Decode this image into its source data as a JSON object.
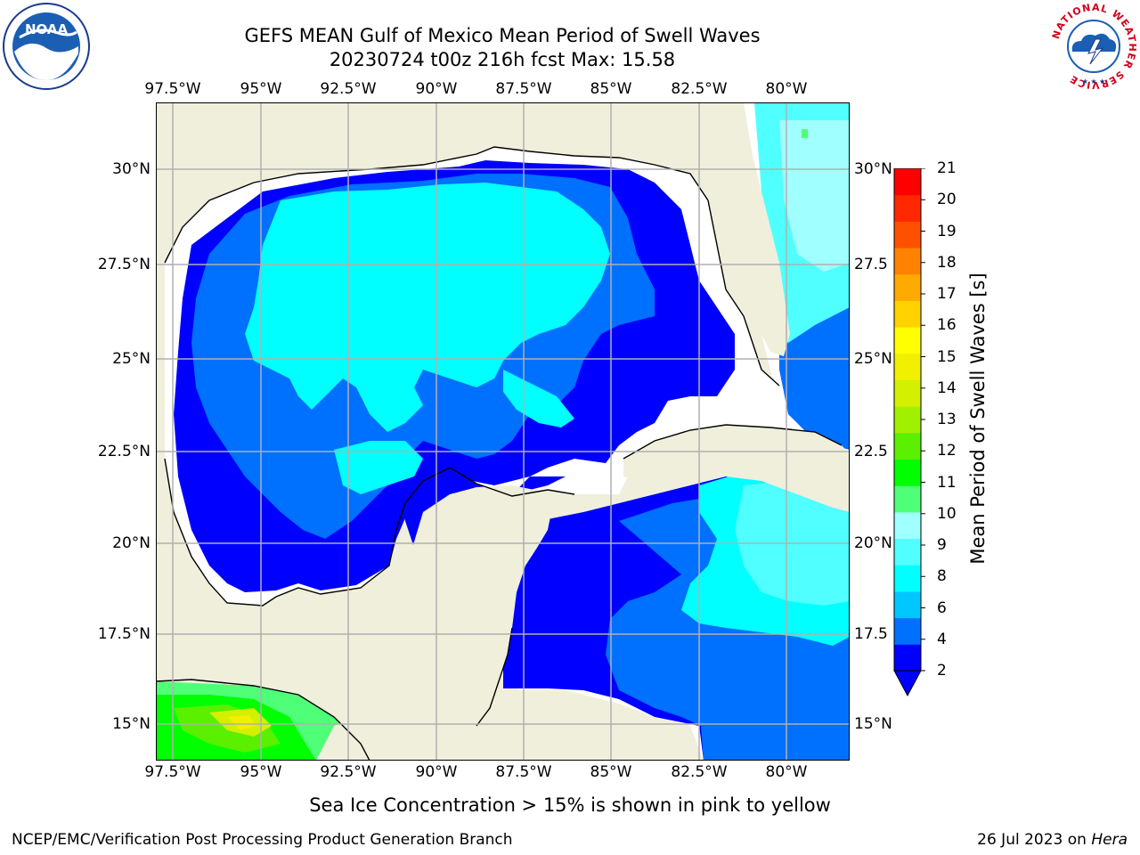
{
  "title": {
    "line1": "GEFS MEAN Gulf of Mexico Mean Period of Swell Waves",
    "line2": "20230724 t00z 216h fcst   Max: 15.58"
  },
  "axes": {
    "lon_ticks": [
      "97.5°W",
      "95°W",
      "92.5°W",
      "90°W",
      "87.5°W",
      "85°W",
      "82.5°W",
      "80°W"
    ],
    "lat_ticks_left": [
      "30°N",
      "27.5°N",
      "25°N",
      "22.5°N",
      "20°N",
      "17.5°N",
      "15°N"
    ],
    "lat_ticks_right": [
      "30°N",
      "27.5",
      "25°N",
      "22.5",
      "20°N",
      "17.5",
      "15°N"
    ]
  },
  "colorbar": {
    "label": "Mean Period of Swell Waves [s]",
    "ticks": [
      "2",
      "4",
      "6",
      "8",
      "9",
      "10",
      "11",
      "12",
      "13",
      "14",
      "15",
      "16",
      "17",
      "18",
      "19",
      "20",
      "21"
    ],
    "colors": [
      "#0000ff",
      "#0070ff",
      "#00c8ff",
      "#00ffff",
      "#50ffff",
      "#a0ffff",
      "#50ff78",
      "#00ff00",
      "#5af000",
      "#a0f000",
      "#d2f000",
      "#f0f000",
      "#ffff00",
      "#ffd200",
      "#ffaa00",
      "#ff8200",
      "#ff5000",
      "#ff2800",
      "#ff0000"
    ],
    "under_color": "#0000ff"
  },
  "map_colors": {
    "land": "#efefdc",
    "ocean_missing": "#ffffff",
    "period_2_4": "#0000ff",
    "period_4_6": "#0070ff",
    "period_6_8": "#00ffff",
    "period_8_9": "#50ffff",
    "period_9_10": "#a0ffff",
    "period_10_11": "#50ff78",
    "period_11_12": "#00ff00",
    "period_12_13": "#5af000",
    "period_13_14": "#d2f000",
    "period_14_15": "#f0f000"
  },
  "footer": {
    "note": "Sea Ice Concentration > 15% is shown in pink to yellow",
    "credit_left": "NCEP/EMC/Verification Post Processing Product Generation Branch",
    "credit_right_date": "26 Jul 2023 on ",
    "credit_right_host": "Hera"
  },
  "logos": {
    "noaa_text": "NOAA",
    "nws_ring_text": "NATIONAL WEATHER SERVICE"
  }
}
